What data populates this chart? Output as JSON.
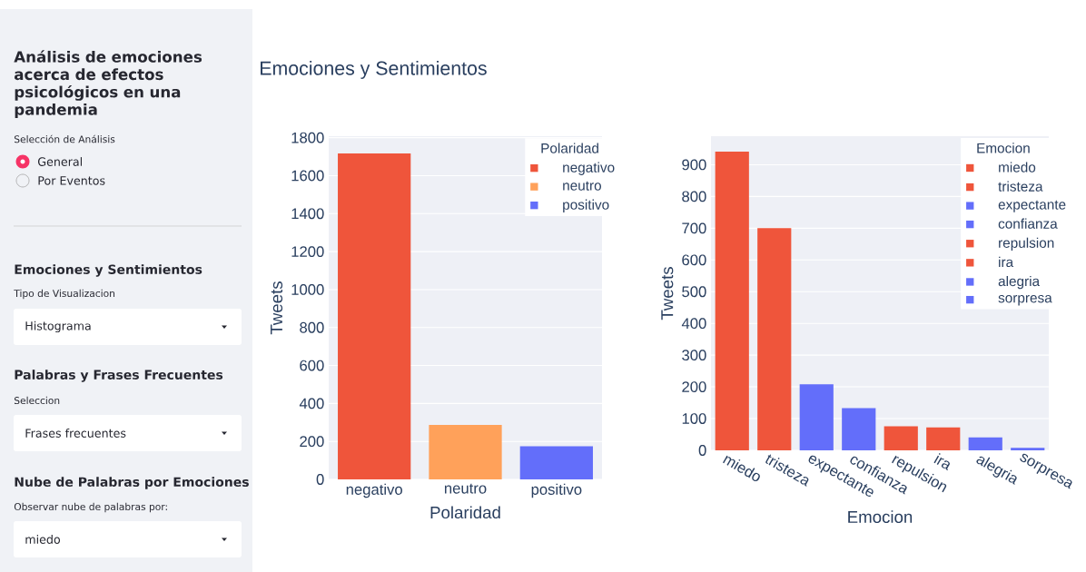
{
  "chart_data": [
    {
      "type": "other",
      "title": "Análisis de emociones acerca de efectos psicológicos en una pandemia",
      "annotations": [
        "Selección de Análisis",
        "General",
        "Por Eventos",
        "Emociones y Sentimientos",
        "Tipo de Visualizacion",
        "Histograma",
        "Palabras y Frases Frecuentes",
        "Seleccion",
        "Frases frecuentes",
        "Nube de Palabras por Emociones",
        "Observar nube de palabras por:",
        "miedo"
      ]
    },
    {
      "type": "bar",
      "title": "Emociones y Sentimientos",
      "xlabel": "Polaridad",
      "ylabel": "Tweets",
      "legend_title": "Polaridad",
      "categories": [
        "negativo",
        "neutro",
        "positivo"
      ],
      "series": [
        {
          "name": "negativo",
          "color": "#ef553b",
          "values": [
            1717,
            null,
            null
          ]
        },
        {
          "name": "neutro",
          "color": "#ffa15a",
          "values": [
            null,
            287,
            null
          ]
        },
        {
          "name": "positivo",
          "color": "#636efa",
          "values": [
            null,
            null,
            174
          ]
        }
      ],
      "ylim": [
        0,
        1808
      ],
      "yticks": [
        0,
        200,
        400,
        600,
        800,
        1000,
        1200,
        1400,
        1600,
        1800
      ],
      "grid": "y",
      "legend": "top right"
    },
    {
      "type": "bar",
      "xlabel": "Emocion",
      "ylabel": "Tweets",
      "legend_title": "Emocion",
      "categories": [
        "miedo",
        "tristeza",
        "expectante",
        "confianza",
        "repulsion",
        "ira",
        "alegria",
        "sorpresa"
      ],
      "series": [
        {
          "name": "miedo",
          "color": "#ef553b",
          "values": [
            941,
            null,
            null,
            null,
            null,
            null,
            null,
            null
          ]
        },
        {
          "name": "tristeza",
          "color": "#ef553b",
          "values": [
            null,
            700,
            null,
            null,
            null,
            null,
            null,
            null
          ]
        },
        {
          "name": "expectante",
          "color": "#636efa",
          "values": [
            null,
            null,
            208,
            null,
            null,
            null,
            null,
            null
          ]
        },
        {
          "name": "confianza",
          "color": "#636efa",
          "values": [
            null,
            null,
            null,
            133,
            null,
            null,
            null,
            null
          ]
        },
        {
          "name": "repulsion",
          "color": "#ef553b",
          "values": [
            null,
            null,
            null,
            null,
            76,
            null,
            null,
            null
          ]
        },
        {
          "name": "ira",
          "color": "#ef553b",
          "values": [
            null,
            null,
            null,
            null,
            null,
            72,
            null,
            null
          ]
        },
        {
          "name": "alegria",
          "color": "#636efa",
          "values": [
            null,
            null,
            null,
            null,
            null,
            null,
            41,
            null
          ]
        },
        {
          "name": "sorpresa",
          "color": "#636efa",
          "values": [
            null,
            null,
            null,
            null,
            null,
            null,
            null,
            8
          ]
        }
      ],
      "ylim": [
        0,
        990
      ],
      "yticks": [
        0,
        100,
        200,
        300,
        400,
        500,
        600,
        700,
        800,
        900
      ],
      "grid": "y",
      "legend": "top right"
    }
  ]
}
